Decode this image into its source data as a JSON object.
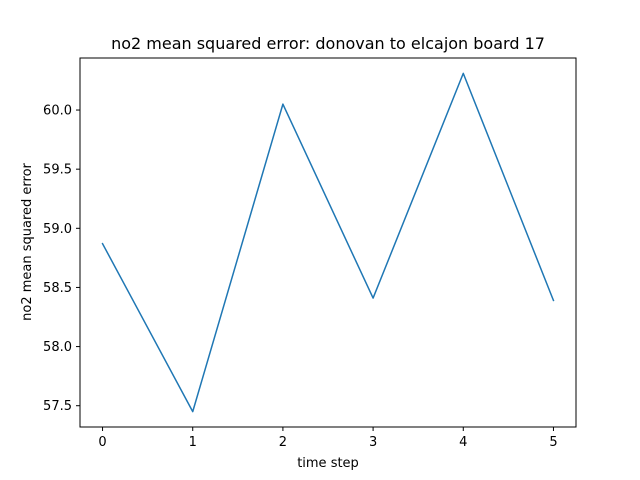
{
  "chart_data": {
    "type": "line",
    "title": "no2 mean squared error: donovan to elcajon board 17",
    "xlabel": "time step",
    "ylabel": "no2 mean squared error",
    "x": [
      0,
      1,
      2,
      3,
      4,
      5
    ],
    "series": [
      {
        "values": [
          58.87,
          57.45,
          60.05,
          58.41,
          60.31,
          58.39
        ],
        "color": "#1f77b4"
      }
    ],
    "xlim": [
      -0.25,
      5.25
    ],
    "ylim": [
      57.32,
      60.44
    ],
    "xticks": [
      0,
      1,
      2,
      3,
      4,
      5
    ],
    "xtick_labels": [
      "0",
      "1",
      "2",
      "3",
      "4",
      "5"
    ],
    "yticks": [
      57.5,
      58.0,
      58.5,
      59.0,
      59.5,
      60.0
    ],
    "ytick_labels": [
      "57.5",
      "58.0",
      "58.5",
      "59.0",
      "59.5",
      "60.0"
    ],
    "grid": false,
    "legend": "none"
  }
}
